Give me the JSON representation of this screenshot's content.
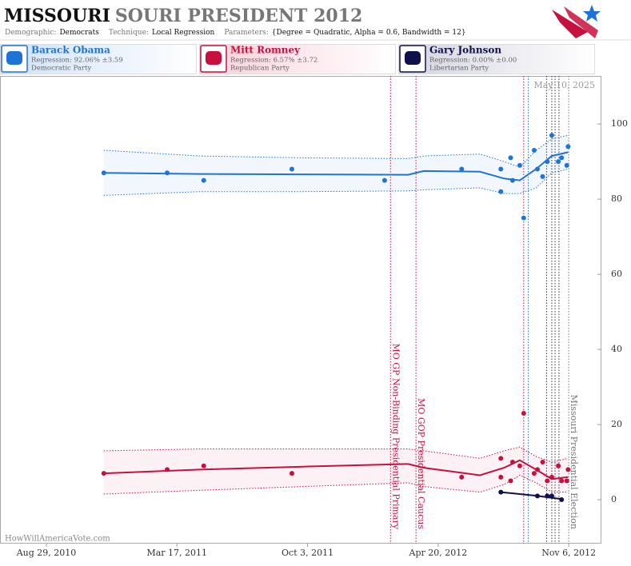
{
  "header": {
    "title_main": "MISSOURI",
    "title_rest": "SOURI PRESIDENT 2012",
    "meta": [
      {
        "label": "Demographic:",
        "value": "Democrats"
      },
      {
        "label": "Technique:",
        "value": "Local Regression"
      },
      {
        "label": "Parameters:",
        "value": "{Degree = Quadratic, Alpha = 0.6, Bandwidth = 12}"
      }
    ]
  },
  "chart_data": {
    "type": "scatter",
    "date_stamp": "May 10, 2025",
    "source": "HowWillAmericaVote.com",
    "xlim": [
      "2010-06-19",
      "2012-12-26"
    ],
    "xticks": [
      {
        "value": "2010-08-29",
        "label": "Aug 29, 2010"
      },
      {
        "value": "2011-03-17",
        "label": "Mar 17, 2011"
      },
      {
        "value": "2011-10-03",
        "label": "Oct 3, 2011"
      },
      {
        "value": "2012-04-20",
        "label": "Apr 20, 2012"
      },
      {
        "value": "2012-11-06",
        "label": "Nov 6, 2012"
      }
    ],
    "ylim": [
      -11.7,
      112.8
    ],
    "yticks": [
      0,
      20,
      40,
      60,
      80,
      100
    ],
    "series": [
      {
        "name": "Barack Obama",
        "regression": "Regression: 92.06% ±3.59",
        "party": "Democratic Party",
        "color": "#1e74d6",
        "x": [
          "2010-11-25",
          "2011-03-02",
          "2011-04-27",
          "2011-09-09",
          "2012-01-29",
          "2012-05-26",
          "2012-07-25",
          "2012-07-25",
          "2012-08-09",
          "2012-08-12",
          "2012-08-23",
          "2012-08-29",
          "2012-09-14",
          "2012-09-19",
          "2012-09-27",
          "2012-10-04",
          "2012-10-11",
          "2012-10-21",
          "2012-10-26",
          "2012-11-03",
          "2012-11-05"
        ],
        "values": [
          87,
          87,
          85,
          88,
          85,
          88,
          88,
          82,
          91,
          85,
          89,
          75,
          93,
          88,
          86,
          90,
          97,
          90,
          91,
          89,
          94
        ],
        "trend": {
          "x": [
            "2010-11-25",
            "2011-04-21",
            "2011-09-27",
            "2012-03-05",
            "2012-03-29",
            "2012-06-23",
            "2012-07-30",
            "2012-08-23",
            "2012-09-17",
            "2012-10-11",
            "2012-11-05"
          ],
          "values": [
            87,
            86.7,
            86.6,
            86.5,
            87.5,
            87.3,
            85.5,
            85,
            88,
            91.5,
            92.5
          ],
          "upper": [
            93,
            91.5,
            91,
            90.8,
            91.5,
            92,
            90,
            88.5,
            93,
            96,
            97
          ],
          "lower": [
            81,
            82,
            82,
            82.2,
            82.5,
            83,
            81.5,
            81.5,
            83,
            87,
            88
          ]
        }
      },
      {
        "name": "Mitt Romney",
        "regression": "Regression: 6.57% ±3.72",
        "party": "Republican Party",
        "color": "#c8103e",
        "x": [
          "2010-11-25",
          "2011-03-02",
          "2011-04-27",
          "2011-09-09",
          "2012-05-26",
          "2012-07-25",
          "2012-07-25",
          "2012-08-09",
          "2012-08-12",
          "2012-08-23",
          "2012-08-29",
          "2012-09-14",
          "2012-09-19",
          "2012-09-27",
          "2012-10-04",
          "2012-10-11",
          "2012-10-21",
          "2012-10-26",
          "2012-11-03",
          "2012-11-05"
        ],
        "values": [
          7,
          8,
          9,
          7,
          6,
          11,
          6,
          5,
          10,
          9,
          23,
          7,
          8,
          10,
          5,
          6,
          9,
          5,
          5,
          8
        ],
        "trend": {
          "x": [
            "2010-11-25",
            "2011-04-21",
            "2011-09-27",
            "2012-03-05",
            "2012-03-29",
            "2012-06-23",
            "2012-07-30",
            "2012-08-23",
            "2012-09-17",
            "2012-10-11",
            "2012-11-05"
          ],
          "values": [
            7,
            8,
            8.8,
            9.5,
            8.5,
            6.5,
            8.5,
            10.5,
            8,
            5.5,
            6
          ],
          "upper": [
            13,
            13.5,
            13.5,
            13.5,
            13,
            11,
            13,
            14,
            11.5,
            10,
            11
          ],
          "lower": [
            1.5,
            2.5,
            3.5,
            4.5,
            3.5,
            2,
            4,
            6.5,
            4.5,
            2,
            2
          ]
        }
      },
      {
        "name": "Gary Johnson",
        "regression": "Regression: 0.00% ±0.00",
        "party": "Libertarian Party",
        "color": "#10104a",
        "x": [
          "2012-07-25",
          "2012-09-19",
          "2012-10-04",
          "2012-10-11",
          "2012-10-26"
        ],
        "values": [
          2,
          1,
          1,
          1,
          0
        ],
        "trend": {
          "x": [
            "2012-07-25",
            "2012-08-23",
            "2012-09-19",
            "2012-10-11",
            "2012-10-26"
          ],
          "values": [
            2,
            1.5,
            1,
            0.5,
            0.2
          ]
        }
      }
    ],
    "events": [
      {
        "date": "2012-02-07",
        "color": "#c8103e",
        "label": "MO GP Non-Binding Presidential Primary"
      },
      {
        "date": "2012-03-17",
        "color": "#c8103e",
        "label": "MO GOP Presidential Caucus"
      },
      {
        "date": "2012-08-29",
        "color": "#c8103e"
      },
      {
        "date": "2012-09-05",
        "color": "#1e74d6"
      },
      {
        "date": "2012-10-03",
        "color": "#333333"
      },
      {
        "date": "2012-10-11",
        "color": "#333333"
      },
      {
        "date": "2012-10-16",
        "color": "#333333"
      },
      {
        "date": "2012-10-22",
        "color": "#333333"
      },
      {
        "date": "2012-11-06",
        "color": "#777777",
        "label": "Missouri Presidential Election"
      }
    ]
  }
}
